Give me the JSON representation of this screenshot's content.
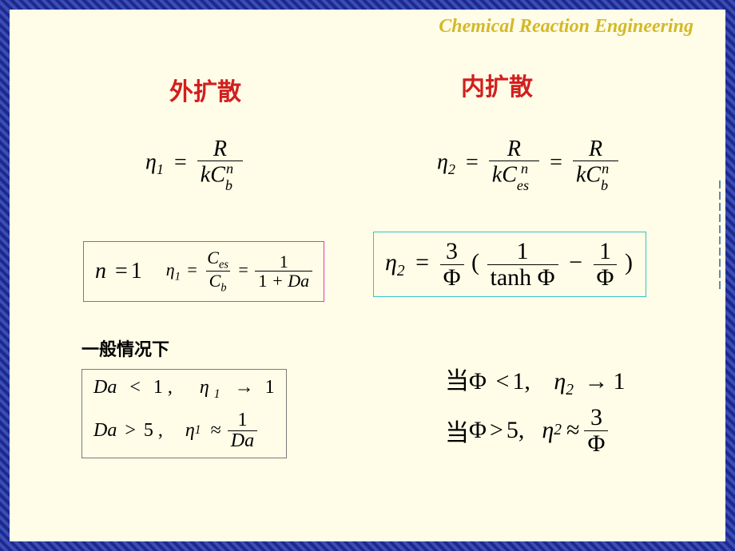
{
  "colors": {
    "border_pattern": "#1e2a8a",
    "slide_bg": "#fffde7",
    "header_text": "#d4b82a",
    "red": "#d21f1f",
    "magenta_box": "#d63fba",
    "cyan_box": "#2fc5c9",
    "gray_box": "#7a7a7a",
    "mark": "#5b8bbf"
  },
  "header": "Chemical Reaction Engineering",
  "left_heading": "外扩散",
  "right_heading": "内扩散",
  "general_label": "一般情况下",
  "eq_eta1": {
    "lhs": "η",
    "lhs_sub": "1",
    "eq": "=",
    "num": "R",
    "den_k": "kC",
    "den_sub": "b",
    "den_sup": "n"
  },
  "eq_eta2_top": {
    "lhs": "η",
    "lhs_sub": "2",
    "eq": "=",
    "num1": "R",
    "den1_k": "kC",
    "den1_sub": "es",
    "den1_sup": "n",
    "eq2": "=",
    "num2": "R",
    "den2_k": "kC",
    "den2_sub": "b",
    "den2_sup": "n"
  },
  "box_n1": {
    "n_lhs": "n",
    "n_eq": "=",
    "n_rhs": "1",
    "eta": "η",
    "eta_sub": "1",
    "eq1": "=",
    "num1_top": "C",
    "num1_sub": "es",
    "den1_top": "C",
    "den1_sub": "b",
    "eq2": "=",
    "num2": "1",
    "den2": "1 + Da"
  },
  "box_eta2": {
    "eta": "η",
    "eta_sub": "2",
    "eq": "=",
    "f1_num": "3",
    "f1_den": "Φ",
    "open": "(",
    "f2_num": "1",
    "f2_den_tanh": "tanh",
    "f2_den_phi": "Φ",
    "minus": "−",
    "f3_num": "1",
    "f3_den": "Φ",
    "close": ")"
  },
  "box_da": {
    "line1_da": "Da",
    "line1_op": "<",
    "line1_v": "1 ,",
    "line1_eta": "η",
    "line1_sub": "1",
    "line1_arrow": "→",
    "line1_res": "1",
    "line2_da": "Da",
    "line2_op": ">",
    "line2_v": "5 ,",
    "line2_eta": "η",
    "line2_sub": "1",
    "line2_approx": "≈",
    "line2_num": "1",
    "line2_den": "Da"
  },
  "phi_cases": {
    "when": "当",
    "phi": "Φ",
    "line1_op": "<",
    "line1_v": "1,",
    "eta": "η",
    "eta_sub": "2",
    "line1_arrow": "→",
    "line1_res": "1",
    "line2_op": ">",
    "line2_v": "5,",
    "line2_approx": "≈",
    "line2_num": "3",
    "line2_den": "Φ"
  }
}
